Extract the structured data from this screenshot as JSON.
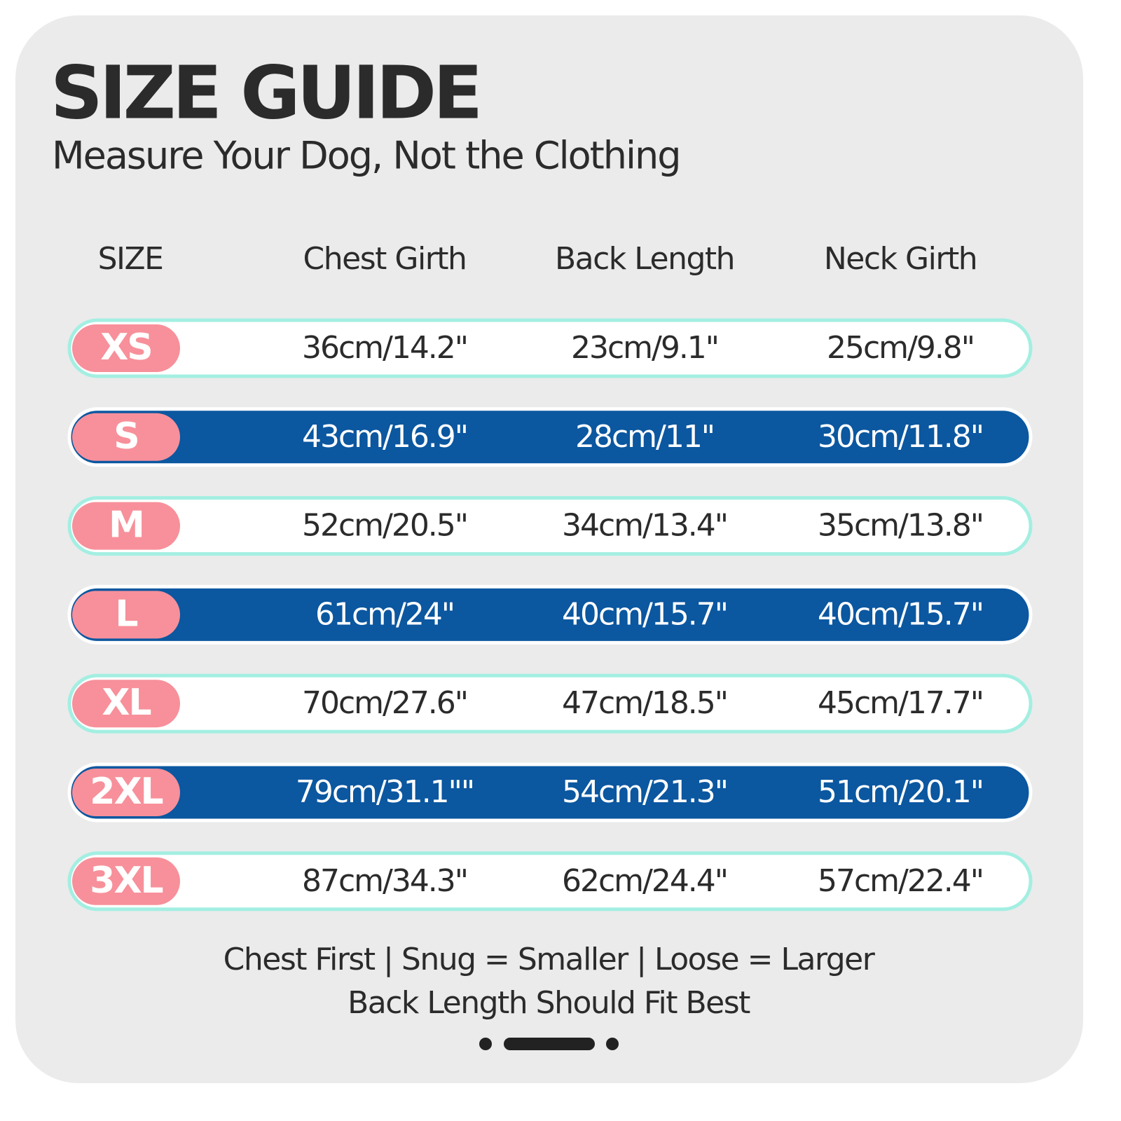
{
  "header": {
    "title": "SIZE GUIDE",
    "subtitle": "Measure Your Dog, Not the Clothing"
  },
  "table": {
    "columns": [
      "SIZE",
      "Chest Girth",
      "Back Length",
      "Neck Girth"
    ],
    "rows": [
      [
        "XS",
        "36cm/14.2\"",
        "23cm/9.1\"",
        "25cm/9.8\""
      ],
      [
        "S",
        "43cm/16.9\"",
        "28cm/11\"",
        "30cm/11.8\""
      ],
      [
        "M",
        "52cm/20.5\"",
        "34cm/13.4\"",
        "35cm/13.8\""
      ],
      [
        "L",
        "61cm/24\"",
        "40cm/15.7\"",
        "40cm/15.7\""
      ],
      [
        "XL",
        "70cm/27.6\"",
        "47cm/18.5\"",
        "45cm/17.7\""
      ],
      [
        "2XL",
        "79cm/31.1\"\"",
        "54cm/21.3\"",
        "51cm/20.1\""
      ],
      [
        "3XL",
        "87cm/34.3\"",
        "62cm/24.4\"",
        "57cm/22.4\""
      ]
    ]
  },
  "footer": {
    "lines": [
      "Chest First | Snug = Smaller | Loose = Larger",
      "Back Length Should Fit Best"
    ]
  }
}
